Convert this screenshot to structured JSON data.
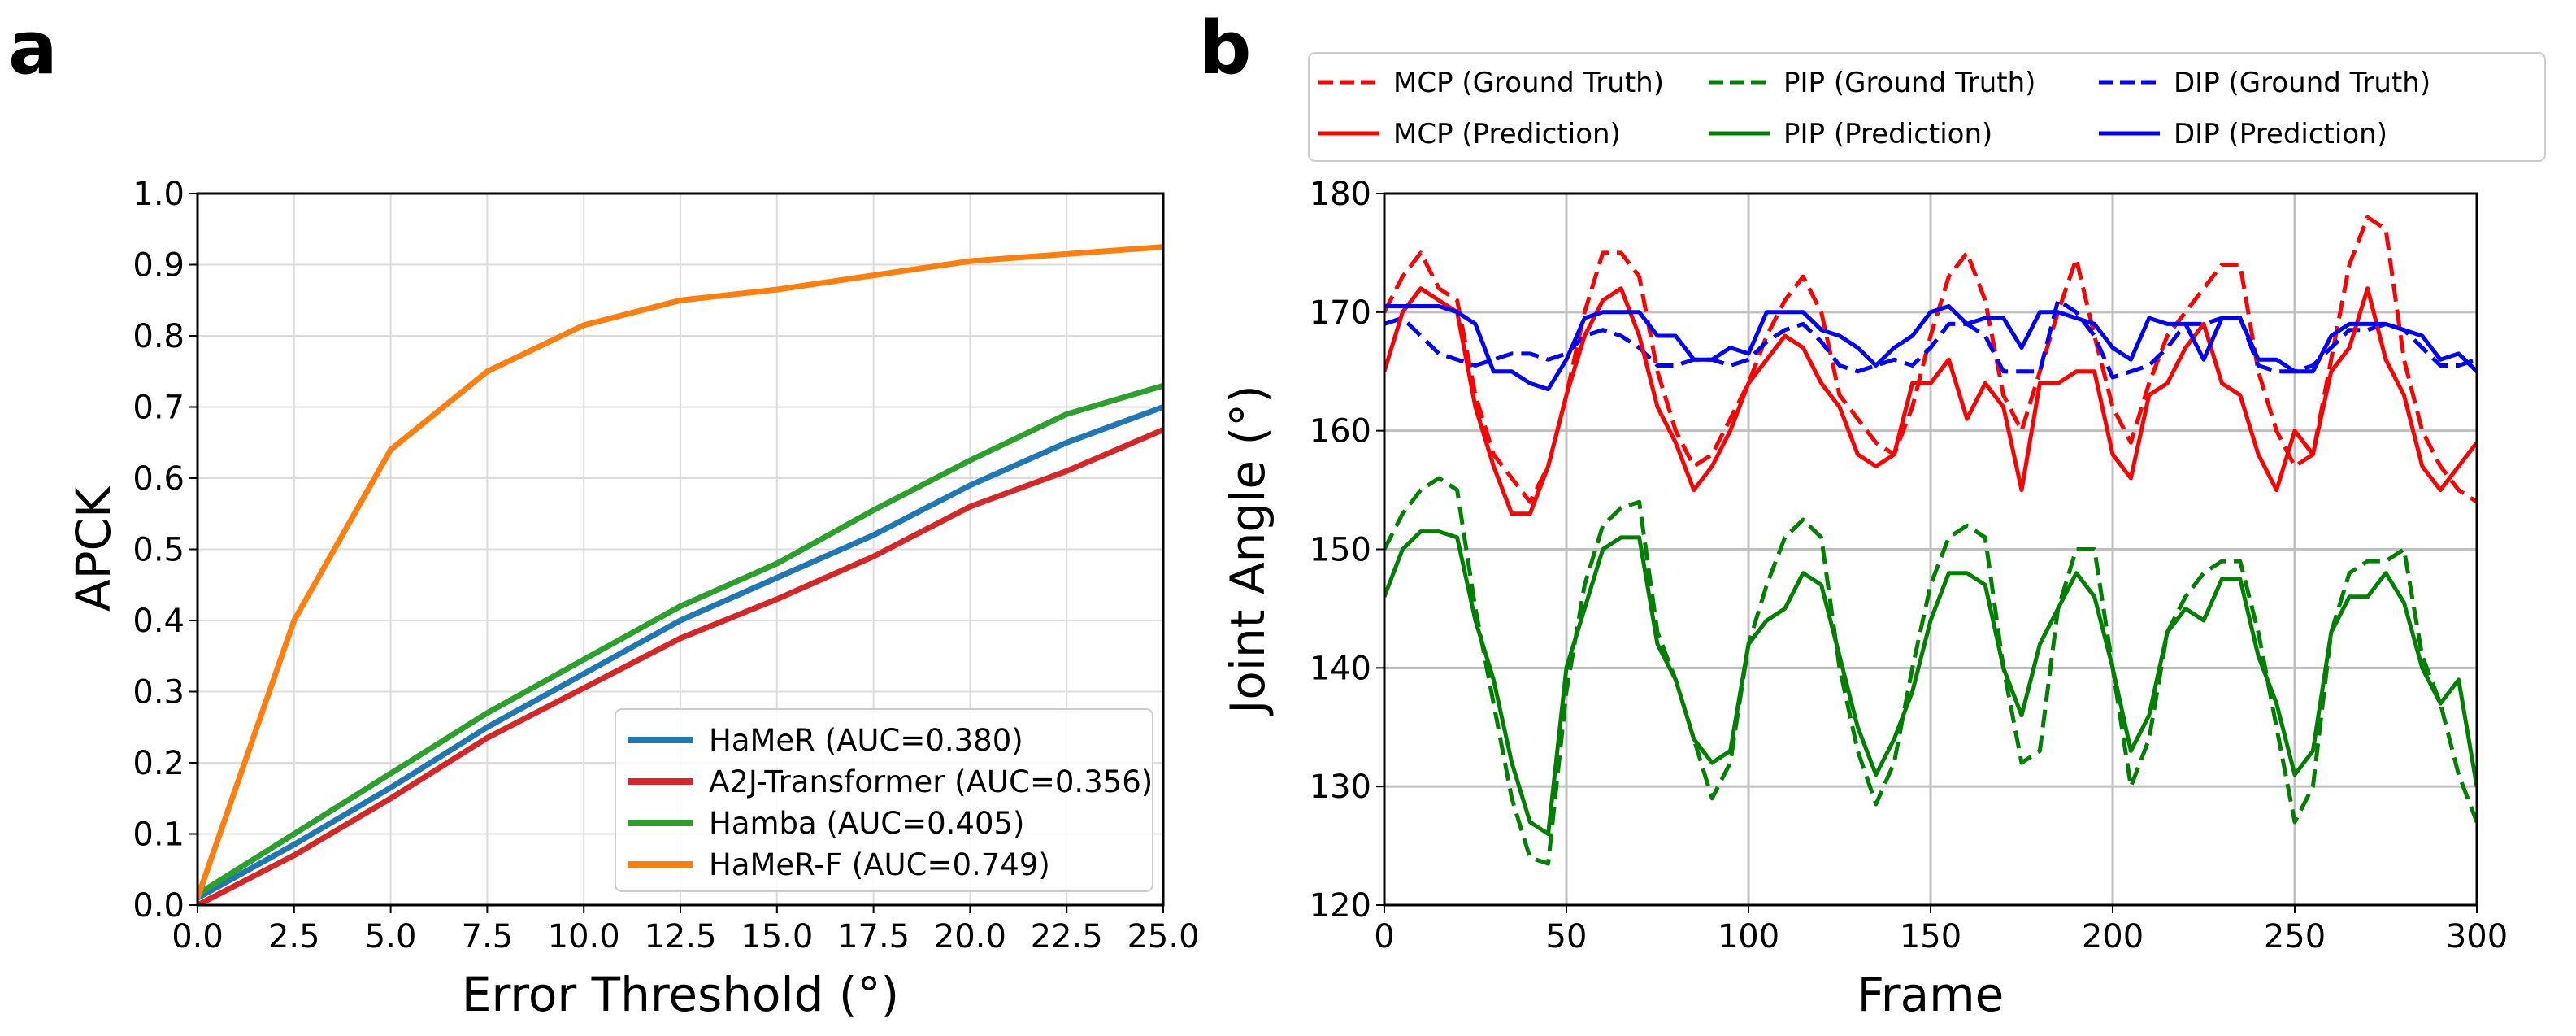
{
  "chart_data": [
    {
      "panel": "a",
      "type": "line",
      "xlabel": "Error Threshold (°)",
      "ylabel": "APCK",
      "xlim": [
        0,
        25
      ],
      "ylim": [
        0,
        1
      ],
      "grid": true,
      "legend_position": "lower-right",
      "xticks": [
        "0.0",
        "2.5",
        "5.0",
        "7.5",
        "10.0",
        "12.5",
        "15.0",
        "17.5",
        "20.0",
        "22.5",
        "25.0"
      ],
      "yticks": [
        "0.0",
        "0.1",
        "0.2",
        "0.3",
        "0.4",
        "0.5",
        "0.6",
        "0.7",
        "0.8",
        "0.9",
        "1.0"
      ],
      "x": [
        0,
        2.5,
        5,
        7.5,
        10,
        12.5,
        15,
        17.5,
        20,
        22.5,
        25
      ],
      "series": [
        {
          "name": "HaMeR (AUC=0.380)",
          "color": "#1f77b4",
          "values": [
            0.01,
            0.085,
            0.165,
            0.25,
            0.325,
            0.4,
            0.46,
            0.52,
            0.59,
            0.65,
            0.7
          ]
        },
        {
          "name": "A2J-Transformer (AUC=0.356)",
          "color": "#d62728",
          "values": [
            0.0,
            0.07,
            0.15,
            0.235,
            0.305,
            0.375,
            0.43,
            0.49,
            0.56,
            0.61,
            0.668
          ]
        },
        {
          "name": "Hamba (AUC=0.405)",
          "color": "#2ca02c",
          "values": [
            0.015,
            0.1,
            0.185,
            0.27,
            0.345,
            0.42,
            0.48,
            0.555,
            0.625,
            0.69,
            0.73
          ]
        },
        {
          "name": "HaMeR-F (AUC=0.749)",
          "color": "#ff7f0e",
          "values": [
            0.01,
            0.4,
            0.64,
            0.75,
            0.815,
            0.85,
            0.865,
            0.885,
            0.905,
            0.915,
            0.925
          ]
        }
      ]
    },
    {
      "panel": "b",
      "type": "line",
      "xlabel": "Frame",
      "ylabel": "Joint Angle (°)",
      "xlim": [
        0,
        300
      ],
      "ylim": [
        120,
        180
      ],
      "grid": true,
      "legend_position": "top-outside",
      "xticks": [
        "0",
        "50",
        "100",
        "150",
        "200",
        "250",
        "300"
      ],
      "yticks": [
        "120",
        "130",
        "140",
        "150",
        "160",
        "170",
        "180"
      ],
      "x_step": 5,
      "series": [
        {
          "name": "MCP (Ground Truth)",
          "color": "#ff0000",
          "dashed": true,
          "values": [
            170,
            173,
            175,
            172,
            171,
            163,
            158,
            156,
            154,
            157,
            163,
            170,
            175,
            175,
            173,
            165,
            160,
            157,
            158,
            161,
            164,
            168,
            171,
            173,
            170,
            163,
            161,
            159,
            158,
            162,
            168,
            173,
            175,
            171,
            163,
            160,
            165,
            170,
            174.5,
            168,
            162,
            159,
            164,
            168,
            170,
            172,
            174,
            174,
            165,
            160,
            157,
            158,
            166,
            174,
            178,
            177,
            166,
            160,
            157,
            155,
            154
          ]
        },
        {
          "name": "PIP (Ground Truth)",
          "color": "#008000",
          "dashed": true,
          "values": [
            150,
            153,
            155,
            156,
            155,
            145,
            137,
            129,
            124,
            123.5,
            138,
            147,
            152,
            153.5,
            154,
            143,
            139,
            134,
            129,
            132,
            142,
            147,
            151,
            152.5,
            151,
            140,
            133,
            128.5,
            132,
            140,
            147,
            151,
            152,
            151,
            140,
            132,
            133,
            145,
            150,
            150,
            140,
            130,
            134,
            143,
            146,
            148,
            149,
            149,
            143,
            135,
            127,
            130,
            143,
            148,
            149,
            149,
            150,
            141,
            137,
            131,
            127
          ]
        },
        {
          "name": "DIP (Ground Truth)",
          "color": "#0000ff",
          "dashed": true,
          "values": [
            169,
            169.5,
            168,
            166.5,
            166,
            165.5,
            166,
            166.5,
            166.5,
            166,
            166.5,
            168,
            168.5,
            168,
            167,
            165.5,
            165.5,
            166,
            166,
            165.5,
            166,
            167.5,
            168.5,
            169,
            167.5,
            165.5,
            165,
            165.5,
            166,
            165.5,
            167,
            169,
            169,
            168,
            165,
            165,
            165,
            171,
            170,
            168,
            164.5,
            165,
            165.5,
            167,
            169,
            169,
            169.5,
            169.5,
            165.5,
            165,
            165,
            165.5,
            167,
            168.5,
            168.5,
            169,
            168.5,
            167,
            165.5,
            165.5,
            166
          ]
        },
        {
          "name": "MCP (Prediction)",
          "color": "#ff0000",
          "dashed": false,
          "values": [
            165,
            170,
            172,
            171,
            170,
            162,
            157,
            153,
            153,
            157,
            163,
            168,
            171,
            172,
            168,
            162,
            159,
            155,
            157,
            160,
            164,
            166,
            168,
            167,
            164,
            162,
            158,
            157,
            158,
            164,
            164,
            166,
            161,
            164,
            162,
            155,
            164,
            164,
            165,
            165,
            158,
            156,
            163,
            164,
            167,
            169,
            164,
            163,
            158,
            155,
            160,
            158,
            165,
            167,
            172,
            166,
            163,
            157,
            155,
            157,
            159
          ]
        },
        {
          "name": "PIP (Prediction)",
          "color": "#008000",
          "dashed": false,
          "values": [
            146,
            150,
            151.5,
            151.5,
            151,
            144,
            139,
            132,
            127,
            126,
            140,
            145,
            150,
            151,
            151,
            142,
            139,
            134,
            132,
            133,
            142,
            144,
            145,
            148,
            147,
            141,
            135,
            131,
            134,
            138,
            144,
            148,
            148,
            147,
            140,
            136,
            142,
            145,
            148,
            146,
            140,
            133,
            136,
            143,
            145,
            144,
            147.5,
            147.5,
            141,
            137,
            131,
            133,
            143,
            146,
            146,
            148,
            145.5,
            140,
            137,
            139,
            130
          ]
        },
        {
          "name": "DIP (Prediction)",
          "color": "#0000ff",
          "dashed": false,
          "values": [
            170.5,
            170.5,
            170.5,
            170.5,
            170,
            169,
            165,
            165,
            164,
            163.5,
            166,
            169.5,
            170,
            170,
            170,
            168,
            168,
            166,
            166,
            167,
            166.5,
            170,
            170,
            170,
            168.5,
            168,
            167,
            165.5,
            167,
            168,
            170,
            170.5,
            169,
            169.5,
            169.5,
            167,
            170,
            170,
            169.5,
            169,
            167,
            166,
            169.5,
            169,
            169,
            166,
            169.5,
            169.5,
            166,
            166,
            165,
            165,
            168,
            169,
            169,
            169,
            168.5,
            168,
            166,
            166.5,
            165
          ]
        }
      ]
    }
  ],
  "panels": {
    "a": "a",
    "b": "b"
  }
}
